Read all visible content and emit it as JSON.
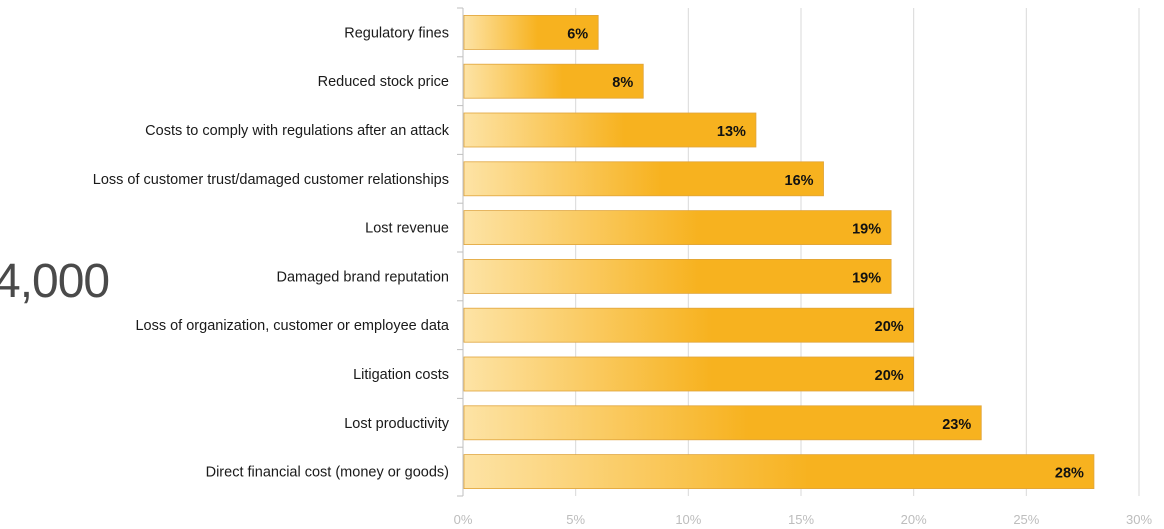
{
  "side_text": "4,000",
  "chart_data": {
    "type": "bar",
    "orientation": "horizontal",
    "title": "",
    "xlabel": "",
    "ylabel": "",
    "categories": [
      "Regulatory fines",
      "Reduced stock price",
      "Costs to comply with regulations after an attack",
      "Loss of customer trust/damaged customer relationships",
      "Lost revenue",
      "Damaged brand reputation",
      "Loss of organization, customer or employee data",
      "Litigation costs",
      "Lost productivity",
      "Direct financial cost (money or goods)"
    ],
    "values": [
      6,
      8,
      13,
      16,
      19,
      19,
      20,
      20,
      23,
      28
    ],
    "data_labels": [
      "6%",
      "8%",
      "13%",
      "16%",
      "19%",
      "19%",
      "20%",
      "20%",
      "23%",
      "28%"
    ],
    "x_ticks": [
      0,
      5,
      10,
      15,
      20,
      25,
      30
    ],
    "x_tick_labels": [
      "0%",
      "5%",
      "10%",
      "15%",
      "20%",
      "25%",
      "30%"
    ],
    "xlim": [
      0,
      30
    ],
    "grid": true,
    "legend": "none",
    "colors": {
      "bar_start": "#fde3a5",
      "bar_end": "#f7b21f",
      "bar_border": "#e0a43a",
      "grid": "#d9d9d9",
      "axis": "#bfbfbf"
    }
  }
}
